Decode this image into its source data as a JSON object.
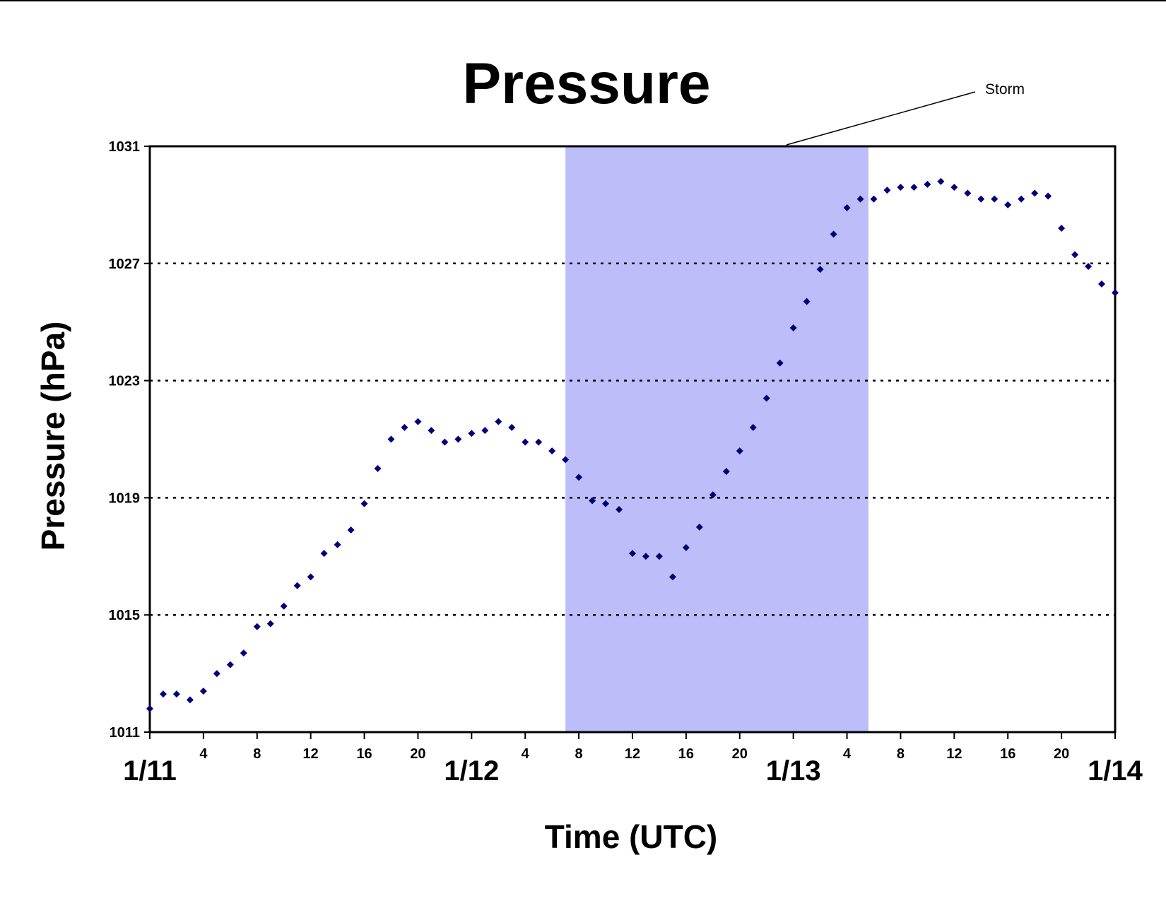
{
  "chart_data": {
    "type": "scatter",
    "title": "Pressure",
    "xlabel": "Time (UTC)",
    "ylabel": "Pressure (hPa)",
    "ylim": [
      1011,
      1031
    ],
    "yticks": [
      "1011",
      "1015",
      "1019",
      "1023",
      "1027",
      "1031"
    ],
    "xlim_hours": [
      0,
      72
    ],
    "xticks_hours": [
      0,
      4,
      8,
      12,
      16,
      20,
      24,
      28,
      32,
      36,
      40,
      44,
      48,
      52,
      56,
      60,
      64,
      68,
      72
    ],
    "xtick_labels": [
      "",
      "4",
      "8",
      "12",
      "16",
      "20",
      "",
      "4",
      "8",
      "12",
      "16",
      "20",
      "",
      "4",
      "8",
      "12",
      "16",
      "20",
      ""
    ],
    "date_labels": [
      {
        "hour": 0,
        "label": "1/11"
      },
      {
        "hour": 24,
        "label": "1/12"
      },
      {
        "hour": 48,
        "label": "1/13"
      },
      {
        "hour": 72,
        "label": "1/14"
      }
    ],
    "grid": "horizontal dotted",
    "marker_color": "#00007a",
    "shaded_region": {
      "label": "Storm",
      "start_hour": 31,
      "end_hour": 53.6,
      "color": "#bdbdfa"
    },
    "series": [
      {
        "x": [
          0,
          1,
          2,
          3,
          4,
          5,
          6,
          7,
          8,
          9,
          10,
          11,
          12,
          13,
          14,
          15,
          16,
          17,
          18,
          19,
          20,
          21,
          22,
          23,
          24,
          25,
          26,
          27,
          28,
          29,
          30,
          31,
          32,
          33,
          34,
          35,
          36,
          37,
          38,
          39,
          40,
          41,
          42,
          43,
          44,
          45,
          46,
          47,
          48,
          49,
          50,
          51,
          52,
          53,
          54,
          55,
          56,
          57,
          58,
          59,
          60,
          61,
          62,
          63,
          64,
          65,
          66,
          67,
          68,
          69,
          70,
          71,
          72
        ],
        "y": [
          1011.8,
          1012.3,
          1012.3,
          1012.1,
          1012.4,
          1013.0,
          1013.3,
          1013.7,
          1014.6,
          1014.7,
          1015.3,
          1016.0,
          1016.3,
          1017.1,
          1017.4,
          1017.9,
          1018.8,
          1020.0,
          1021.0,
          1021.4,
          1021.6,
          1021.3,
          1020.9,
          1021.0,
          1021.2,
          1021.3,
          1021.6,
          1021.4,
          1020.9,
          1020.9,
          1020.6,
          1020.3,
          1019.7,
          1018.9,
          1018.8,
          1018.6,
          1017.1,
          1017.0,
          1017.0,
          1016.3,
          1017.3,
          1018.0,
          1019.1,
          1019.9,
          1020.6,
          1021.4,
          1022.4,
          1023.6,
          1024.8,
          1025.7,
          1026.8,
          1028.0,
          1028.9,
          1029.2,
          1029.2,
          1029.5,
          1029.6,
          1029.6,
          1029.7,
          1029.8,
          1029.6,
          1029.4,
          1029.2,
          1029.2,
          1029.0,
          1029.2,
          1029.4,
          1029.3,
          1028.2,
          1027.3,
          1026.9,
          1026.3,
          1026.0
        ]
      }
    ]
  }
}
